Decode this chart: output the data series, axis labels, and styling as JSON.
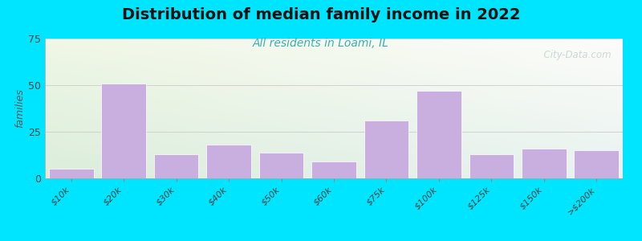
{
  "title": "Distribution of median family income in 2022",
  "subtitle": "All residents in Loami, IL",
  "ylabel": "families",
  "categories": [
    "$10k",
    "$20k",
    "$30k",
    "$40k",
    "$50k",
    "$60k",
    "$75k",
    "$100k",
    "$125k",
    "$150k",
    ">$200k"
  ],
  "values": [
    5,
    51,
    13,
    18,
    14,
    9,
    31,
    47,
    13,
    16,
    15
  ],
  "bar_color": "#c9aee0",
  "bar_edge_color": "#ffffff",
  "ylim": [
    0,
    75
  ],
  "yticks": [
    0,
    25,
    50,
    75
  ],
  "background_outer": "#00e5ff",
  "bg_top_left": "#d4e8c2",
  "bg_top_right": "#f0f5f0",
  "bg_bottom_left": "#e8f4e8",
  "bg_bottom_right": "#e8eeee",
  "title_fontsize": 14,
  "subtitle_fontsize": 10,
  "subtitle_color": "#3ab0b0",
  "ylabel_fontsize": 9,
  "tick_label_fontsize": 8,
  "watermark_text": "  City-Data.com",
  "watermark_color": "#b8c8cc",
  "watermark_alpha": 0.7
}
